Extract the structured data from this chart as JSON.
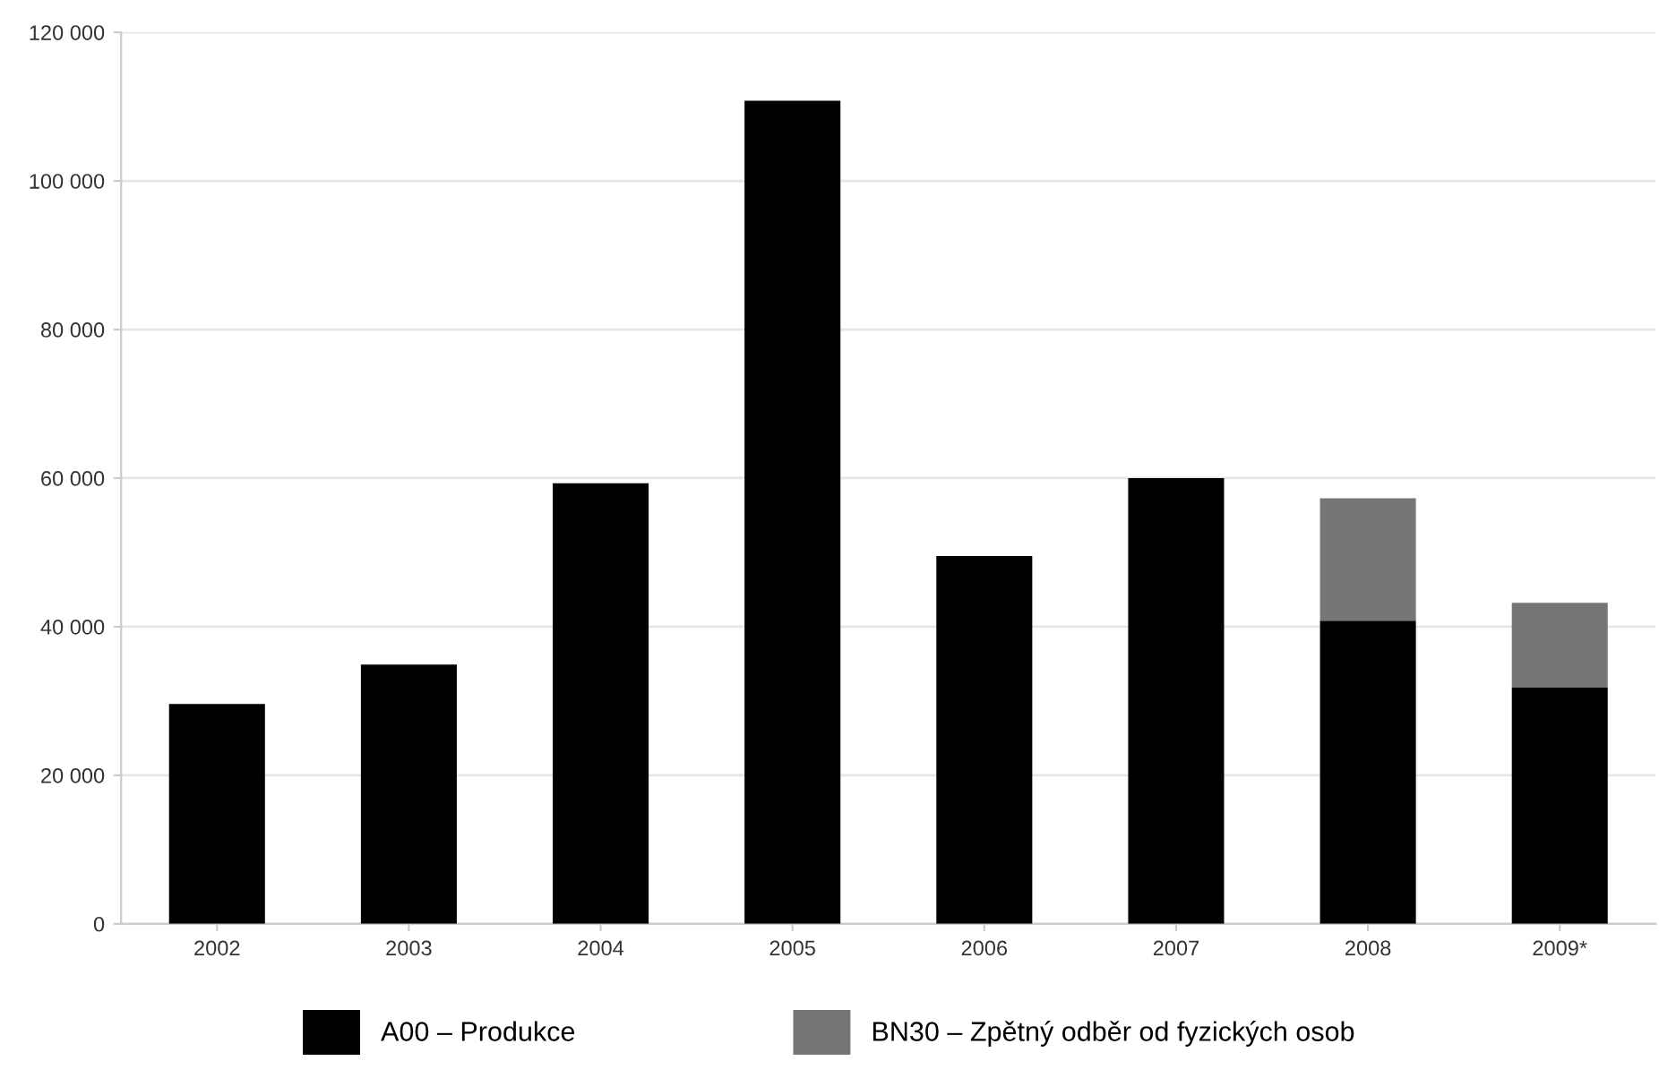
{
  "chart_data": {
    "type": "bar",
    "stacked": true,
    "categories": [
      "2002",
      "2003",
      "2004",
      "2005",
      "2006",
      "2007",
      "2008",
      "2009*"
    ],
    "series": [
      {
        "name": "A00 – Produkce",
        "color": "#000000",
        "values": [
          29600,
          34900,
          59300,
          110800,
          49500,
          60000,
          40800,
          31800
        ]
      },
      {
        "name": "BN30 – Zpětný odběr od fyzických osob",
        "color": "#767676",
        "values": [
          null,
          null,
          null,
          null,
          null,
          null,
          16500,
          11400
        ]
      }
    ],
    "ylim": [
      0,
      120000
    ],
    "yticks": [
      {
        "value": 0,
        "label": "0"
      },
      {
        "value": 20000,
        "label": "20 000"
      },
      {
        "value": 40000,
        "label": "40 000"
      },
      {
        "value": 60000,
        "label": "60 000"
      },
      {
        "value": 80000,
        "label": "80 000"
      },
      {
        "value": 100000,
        "label": "100 000"
      },
      {
        "value": 120000,
        "label": "120 000"
      }
    ],
    "grid": "y",
    "legend": "bottom"
  }
}
